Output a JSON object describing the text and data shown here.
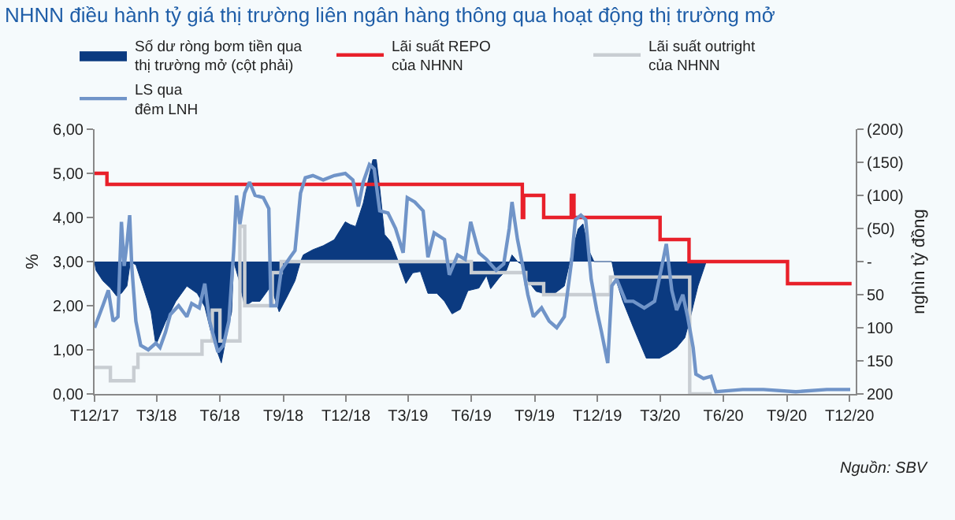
{
  "chart_data": {
    "type": "line",
    "title": "NHNN điều hành tỷ giá thị trường liên ngân hàng thông qua hoạt động thị trường mở",
    "ylabel": "%",
    "y2label": "nghìn tỷ đồng",
    "annotations": [
      "Nguồn: SBV"
    ],
    "xlim": [
      "2017-12-01",
      "2020-12-10"
    ],
    "xticks": [
      {
        "value": "2017-12-01",
        "label": "T12/17"
      },
      {
        "value": "2018-03-01",
        "label": "T3/18"
      },
      {
        "value": "2018-06-01",
        "label": "T6/18"
      },
      {
        "value": "2018-09-01",
        "label": "T9/18"
      },
      {
        "value": "2018-12-01",
        "label": "T12/18"
      },
      {
        "value": "2019-03-01",
        "label": "T3/19"
      },
      {
        "value": "2019-06-01",
        "label": "T6/19"
      },
      {
        "value": "2019-09-01",
        "label": "T9/19"
      },
      {
        "value": "2019-12-01",
        "label": "T12/19"
      },
      {
        "value": "2020-03-01",
        "label": "T3/20"
      },
      {
        "value": "2020-06-01",
        "label": "T6/20"
      },
      {
        "value": "2020-09-01",
        "label": "T9/20"
      },
      {
        "value": "2020-12-01",
        "label": "T12/20"
      }
    ],
    "ylim": [
      0,
      6
    ],
    "yticks": [
      {
        "value": 0,
        "label": "0,00"
      },
      {
        "value": 1,
        "label": "1,00"
      },
      {
        "value": 2,
        "label": "2,00"
      },
      {
        "value": 3,
        "label": "3,00"
      },
      {
        "value": 4,
        "label": "4,00"
      },
      {
        "value": 5,
        "label": "5,00"
      },
      {
        "value": 6,
        "label": "6,00"
      }
    ],
    "y2lim": [
      200,
      -200
    ],
    "y2ticks": [
      {
        "value": -200,
        "label": "(200)"
      },
      {
        "value": -150,
        "label": "(150)"
      },
      {
        "value": -100,
        "label": "(100)"
      },
      {
        "value": -50,
        "label": "(50)"
      },
      {
        "value": 0,
        "label": "-"
      },
      50,
      100,
      150,
      200
    ],
    "grid": false,
    "legend": "top",
    "series": [
      {
        "name": "Số dư ròng bơm tiền qua\nthị trường mở (cột phải)",
        "type": "area",
        "axis": "y2",
        "color": "#0b3a80",
        "x": [
          "2017-12-01",
          "2017-12-03",
          "2017-12-13",
          "2017-12-24",
          "2018-01-02",
          "2018-01-09",
          "2018-01-17",
          "2018-01-22",
          "2018-01-30",
          "2018-02-09",
          "2018-02-21",
          "2018-02-28",
          "2018-03-14",
          "2018-03-29",
          "2018-04-14",
          "2018-04-29",
          "2018-05-10",
          "2018-05-21",
          "2018-06-03",
          "2018-06-10",
          "2018-06-18",
          "2018-06-21",
          "2018-06-29",
          "2018-07-07",
          "2018-07-18",
          "2018-07-29",
          "2018-08-14",
          "2018-08-26",
          "2018-09-07",
          "2018-09-18",
          "2018-09-26",
          "2018-09-30",
          "2018-10-14",
          "2018-10-29",
          "2018-11-14",
          "2018-11-30",
          "2018-12-07",
          "2018-12-15",
          "2018-12-26",
          "2019-01-04",
          "2019-01-09",
          "2019-01-14",
          "2019-01-19",
          "2019-01-26",
          "2019-02-04",
          "2019-02-15",
          "2019-02-19",
          "2019-02-26",
          "2019-03-08",
          "2019-03-19",
          "2019-03-30",
          "2019-04-12",
          "2019-04-23",
          "2019-05-04",
          "2019-05-16",
          "2019-05-27",
          "2019-06-12",
          "2019-06-23",
          "2019-06-29",
          "2019-07-11",
          "2019-07-22",
          "2019-07-30",
          "2019-08-07",
          "2019-08-14",
          "2019-08-22",
          "2019-09-03",
          "2019-09-14",
          "2019-09-30",
          "2019-10-14",
          "2019-10-22",
          "2019-10-26",
          "2019-11-03",
          "2019-11-10",
          "2019-11-18",
          "2019-11-26",
          "2019-12-22",
          "2019-12-26",
          "2020-01-07",
          "2020-01-22",
          "2020-02-10",
          "2020-02-29",
          "2020-03-14",
          "2020-03-25",
          "2020-04-06",
          "2020-04-14",
          "2020-04-25",
          "2020-05-07"
        ],
        "values": [
          0,
          13,
          29,
          40,
          52,
          48,
          37,
          0,
          5,
          37,
          76,
          126,
          91,
          60,
          37,
          48,
          68,
          115,
          153,
          115,
          76,
          0,
          29,
          68,
          60,
          60,
          37,
          76,
          52,
          29,
          0,
          -10,
          -18,
          -24,
          -33,
          -60,
          -56,
          -53,
          -88,
          -131,
          -154,
          -154,
          -111,
          -41,
          -30,
          0,
          13,
          33,
          17,
          15,
          48,
          48,
          60,
          79,
          72,
          44,
          40,
          21,
          41,
          25,
          13,
          -10,
          0,
          5,
          29,
          45,
          48,
          48,
          37,
          0,
          -18,
          -49,
          -57,
          -18,
          0,
          0,
          21,
          60,
          99,
          146,
          146,
          138,
          130,
          115,
          84,
          37,
          0
        ]
      },
      {
        "name": "Lãi suất REPO\ncủa NHNN",
        "type": "step",
        "color": "#e8202a",
        "x": [
          "2017-12-01",
          "2017-12-19",
          "2019-08-14",
          "2019-08-16",
          "2019-09-14",
          "2019-10-24",
          "2019-10-28",
          "2020-03-01",
          "2020-04-12",
          "2020-09-02",
          "2020-12-04"
        ],
        "values": [
          5.0,
          4.75,
          4.0,
          4.5,
          4.0,
          4.5,
          4.0,
          3.5,
          3.0,
          2.5,
          2.5
        ]
      },
      {
        "name": "Lãi suất outright\ncủa NHNN",
        "type": "step",
        "color": "#c8cdd2",
        "x": [
          "2017-12-01",
          "2017-12-24",
          "2018-01-27",
          "2018-02-02",
          "2018-05-06",
          "2018-05-21",
          "2018-06-01",
          "2018-06-30",
          "2018-07-07",
          "2018-08-16",
          "2018-08-29",
          "2019-06-01",
          "2019-08-19",
          "2019-09-14",
          "2019-12-20",
          "2020-04-13",
          "2020-05-15"
        ],
        "values": [
          0.6,
          0.3,
          0.6,
          0.9,
          1.2,
          1.9,
          1.2,
          3.8,
          2.0,
          2.75,
          3.0,
          2.75,
          2.5,
          2.25,
          2.65,
          0,
          0
        ]
      },
      {
        "name": "LS qua\nđêm LNH",
        "color": "#7094c8",
        "x": [
          "2017-12-01",
          "2017-12-13",
          "2017-12-21",
          "2017-12-28",
          "2018-01-04",
          "2018-01-09",
          "2018-01-13",
          "2018-01-17",
          "2018-01-21",
          "2018-01-24",
          "2018-01-30",
          "2018-02-06",
          "2018-02-17",
          "2018-02-28",
          "2018-03-06",
          "2018-03-14",
          "2018-03-21",
          "2018-04-02",
          "2018-04-14",
          "2018-04-21",
          "2018-05-02",
          "2018-05-10",
          "2018-05-17",
          "2018-05-29",
          "2018-06-06",
          "2018-06-14",
          "2018-06-21",
          "2018-06-25",
          "2018-06-30",
          "2018-07-07",
          "2018-07-14",
          "2018-07-22",
          "2018-08-03",
          "2018-08-11",
          "2018-08-14",
          "2018-08-22",
          "2018-08-29",
          "2018-09-11",
          "2018-09-18",
          "2018-09-26",
          "2018-10-03",
          "2018-10-14",
          "2018-10-29",
          "2018-11-14",
          "2018-11-30",
          "2018-12-11",
          "2018-12-19",
          "2018-12-26",
          "2019-01-04",
          "2019-01-11",
          "2019-01-19",
          "2019-01-31",
          "2019-02-11",
          "2019-02-22",
          "2019-02-28",
          "2019-03-11",
          "2019-03-23",
          "2019-03-30",
          "2019-04-08",
          "2019-04-23",
          "2019-04-30",
          "2019-05-12",
          "2019-05-23",
          "2019-05-31",
          "2019-06-12",
          "2019-06-23",
          "2019-07-07",
          "2019-07-18",
          "2019-07-26",
          "2019-07-30",
          "2019-08-07",
          "2019-08-14",
          "2019-08-22",
          "2019-08-30",
          "2019-09-11",
          "2019-09-22",
          "2019-10-03",
          "2019-10-14",
          "2019-10-24",
          "2019-10-30",
          "2019-11-07",
          "2019-11-14",
          "2019-11-22",
          "2019-11-30",
          "2019-12-07",
          "2019-12-16",
          "2019-12-22",
          "2019-12-29",
          "2020-01-11",
          "2020-01-22",
          "2020-02-07",
          "2020-02-22",
          "2020-03-03",
          "2020-03-10",
          "2020-03-18",
          "2020-03-25",
          "2020-04-03",
          "2020-04-10",
          "2020-04-18",
          "2020-04-22",
          "2020-05-03",
          "2020-05-14",
          "2020-05-21",
          "2020-06-29",
          "2020-07-29",
          "2020-09-14",
          "2020-10-29",
          "2020-12-02"
        ],
        "values": [
          1.5,
          2.0,
          2.35,
          1.65,
          1.75,
          3.9,
          2.9,
          3.4,
          4.05,
          2.9,
          1.65,
          1.1,
          1.0,
          1.15,
          1.05,
          1.4,
          1.8,
          2.0,
          1.75,
          2.05,
          1.95,
          2.5,
          1.65,
          0.95,
          1.1,
          1.65,
          3.25,
          4.5,
          3.85,
          4.55,
          4.8,
          4.5,
          4.45,
          4.2,
          2.0,
          2.0,
          2.8,
          3.1,
          3.25,
          4.55,
          4.9,
          4.95,
          4.85,
          4.95,
          5.0,
          4.85,
          4.25,
          4.8,
          5.2,
          5.1,
          4.15,
          4.1,
          3.75,
          3.2,
          4.45,
          4.35,
          4.15,
          3.1,
          3.65,
          3.5,
          2.7,
          3.15,
          3.05,
          3.9,
          3.2,
          3.05,
          2.8,
          2.95,
          3.75,
          4.35,
          3.5,
          2.95,
          2.25,
          1.75,
          1.95,
          1.65,
          1.5,
          1.75,
          2.95,
          3.95,
          4.05,
          3.95,
          2.6,
          1.9,
          1.4,
          0.7,
          2.45,
          2.6,
          2.1,
          2.1,
          1.95,
          2.1,
          2.85,
          3.4,
          2.35,
          1.9,
          2.25,
          1.75,
          1.05,
          0.45,
          0.35,
          0.4,
          0.05,
          0.1,
          0.1,
          0.05,
          0.1,
          0.1
        ]
      }
    ]
  }
}
